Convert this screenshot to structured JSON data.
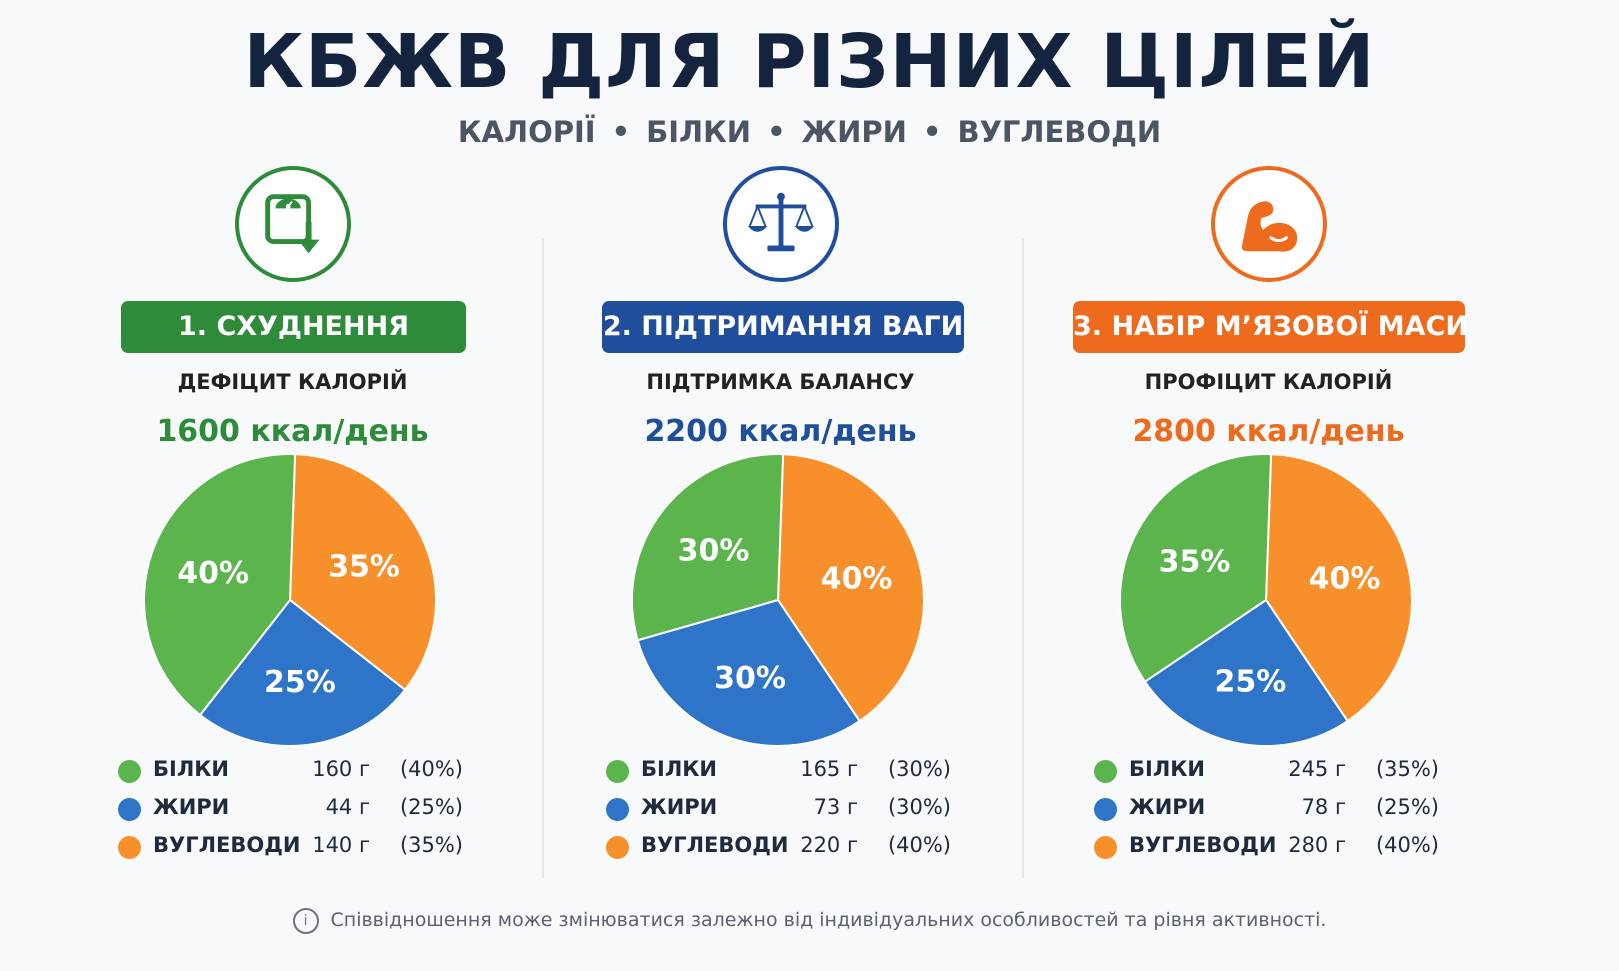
{
  "title": "КБЖВ ДЛЯ РІЗНИХ ЦІЛЕЙ",
  "subtitle": [
    "КАЛОРІЇ",
    "БІЛКИ",
    "ЖИРИ",
    "ВУГЛЕВОДИ"
  ],
  "footer": "Співвідношення може змінюватися залежно від індивідуальних особливостей та рівня активності.",
  "colors": {
    "protein": "#5cb44d",
    "fat": "#2e74c8",
    "carbs": "#f7902b",
    "goal1": "#2e8b3a",
    "goal2": "#1f4e9c",
    "goal3": "#ee6a1c"
  },
  "goals": [
    {
      "banner": "1. СХУДНЕННЯ",
      "subhead": "ДЕФІЦИТ КАЛОРІЙ",
      "kcal": "1600 ккал/день",
      "icon": "scale-down-icon",
      "legend": [
        {
          "name": "БІЛКИ",
          "grams": "160 г",
          "pct": "(40%)"
        },
        {
          "name": "ЖИРИ",
          "grams": "44 г",
          "pct": "(25%)"
        },
        {
          "name": "ВУГЛЕВОДИ",
          "grams": "140 г",
          "pct": "(35%)"
        }
      ]
    },
    {
      "banner": "2. ПІДТРИМАННЯ ВАГИ",
      "subhead": "ПІДТРИМКА БАЛАНСУ",
      "kcal": "2200 ккал/день",
      "icon": "balance-scale-icon",
      "legend": [
        {
          "name": "БІЛКИ",
          "grams": "165 г",
          "pct": "(30%)"
        },
        {
          "name": "ЖИРИ",
          "grams": "73 г",
          "pct": "(30%)"
        },
        {
          "name": "ВУГЛЕВОДИ",
          "grams": "220 г",
          "pct": "(40%)"
        }
      ]
    },
    {
      "banner": "3. НАБІР М’ЯЗОВОЇ МАСИ",
      "subhead": "ПРОФІЦИТ КАЛОРІЙ",
      "kcal": "2800 ккал/день",
      "icon": "flexed-bicep-icon",
      "legend": [
        {
          "name": "БІЛКИ",
          "grams": "245 г",
          "pct": "(35%)"
        },
        {
          "name": "ЖИРИ",
          "grams": "78 г",
          "pct": "(25%)"
        },
        {
          "name": "ВУГЛЕВОДИ",
          "grams": "280 г",
          "pct": "(40%)"
        }
      ]
    }
  ],
  "chart_data": [
    {
      "type": "pie",
      "categories": [
        "БІЛКИ",
        "ЖИРИ",
        "ВУГЛЕВОДИ"
      ],
      "values": [
        40,
        25,
        35
      ],
      "labels": [
        "40%",
        "25%",
        "35%"
      ]
    },
    {
      "type": "pie",
      "categories": [
        "БІЛКИ",
        "ЖИРИ",
        "ВУГЛЕВОДИ"
      ],
      "values": [
        30,
        30,
        40
      ],
      "labels": [
        "30%",
        "30%",
        "40%"
      ]
    },
    {
      "type": "pie",
      "categories": [
        "БІЛКИ",
        "ЖИРИ",
        "ВУГЛЕВОДИ"
      ],
      "values": [
        35,
        25,
        40
      ],
      "labels": [
        "35%",
        "25%",
        "40%"
      ]
    }
  ]
}
